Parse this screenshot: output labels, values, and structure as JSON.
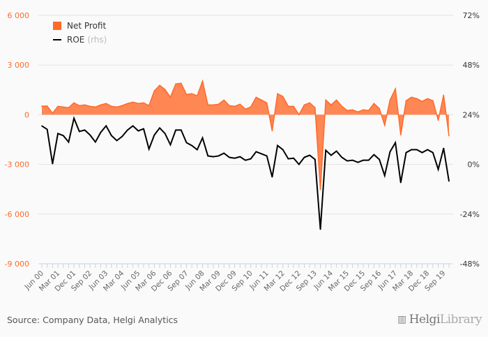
{
  "chart_data": {
    "type": "area+line",
    "legend_placement": "top-left",
    "grid": true,
    "x_tick_labels": [
      "Jun 00",
      "Mar 01",
      "Dec 01",
      "Sep 02",
      "Jun 03",
      "Mar 04",
      "Jun 05",
      "Mar 06",
      "Dec 06",
      "Sep 07",
      "Jun 08",
      "Mar 09",
      "Dec 09",
      "Sep 10",
      "Jun 11",
      "Mar 12",
      "Dec 12",
      "Sep 13",
      "Jun 14",
      "Mar 15",
      "Dec 15",
      "Sep 16",
      "Jun 17",
      "Mar 18",
      "Dec 18",
      "Sep 19"
    ],
    "left_axis": {
      "ticks": [
        "6 000",
        "3 000",
        "0",
        "-3 000",
        "-6 000",
        "-9 000"
      ],
      "range": [
        -9000,
        6000
      ],
      "color": "#ff6a2a"
    },
    "right_axis": {
      "ticks": [
        "72%",
        "48%",
        "24%",
        "0%",
        "-24%",
        "-48%"
      ],
      "range": [
        -48,
        72
      ]
    },
    "series": [
      {
        "name": "Net Profit",
        "axis": "left",
        "type": "area",
        "color": "#ff6a2a",
        "values": [
          520,
          520,
          85,
          507,
          465,
          423,
          718,
          549,
          592,
          507,
          465,
          592,
          676,
          507,
          465,
          549,
          676,
          760,
          676,
          718,
          549,
          1437,
          1775,
          1521,
          1056,
          1859,
          1901,
          1225,
          1268,
          1141,
          2028,
          592,
          592,
          634,
          887,
          549,
          507,
          634,
          338,
          465,
          1056,
          887,
          718,
          -972,
          1268,
          1099,
          507,
          507,
          0,
          592,
          718,
          423,
          -4521,
          887,
          592,
          887,
          507,
          254,
          296,
          169,
          296,
          254,
          676,
          380,
          -634,
          887,
          1563,
          -1225,
          845,
          1056,
          972,
          803,
          972,
          845,
          -338,
          1183,
          -1268
        ]
      },
      {
        "name": "ROE",
        "suffix": "(rhs)",
        "axis": "right",
        "type": "line",
        "color": "#000000",
        "values": [
          18.6,
          16.9,
          0.3,
          14.9,
          13.9,
          10.8,
          22.3,
          15.9,
          16.6,
          14.2,
          10.8,
          15.5,
          18.6,
          13.9,
          11.5,
          13.5,
          16.6,
          18.6,
          16.2,
          17.2,
          7.4,
          14.2,
          17.6,
          14.9,
          9.5,
          16.6,
          16.6,
          10.5,
          9.1,
          7.1,
          12.8,
          4.1,
          3.7,
          4.1,
          5.4,
          3.4,
          3.0,
          3.7,
          2.0,
          2.7,
          6.1,
          5.1,
          4.1,
          -6.1,
          9.1,
          7.1,
          2.7,
          3.0,
          0,
          3.4,
          4.4,
          2.4,
          -31.4,
          6.8,
          4.4,
          6.4,
          3.4,
          1.7,
          2.0,
          1.0,
          2.0,
          2.0,
          4.7,
          2.4,
          -5.4,
          6.1,
          10.5,
          -8.8,
          5.7,
          7.1,
          7.1,
          5.7,
          7.1,
          5.7,
          -2.4,
          7.8,
          -8.1
        ]
      }
    ]
  },
  "legend": {
    "net_profit": "Net Profit",
    "roe": "ROE",
    "rhs": "(rhs)"
  },
  "footer": {
    "source": "Source: Company Data, Helgi Analytics",
    "logo_bold": "Helgi",
    "logo_light": "Library"
  }
}
